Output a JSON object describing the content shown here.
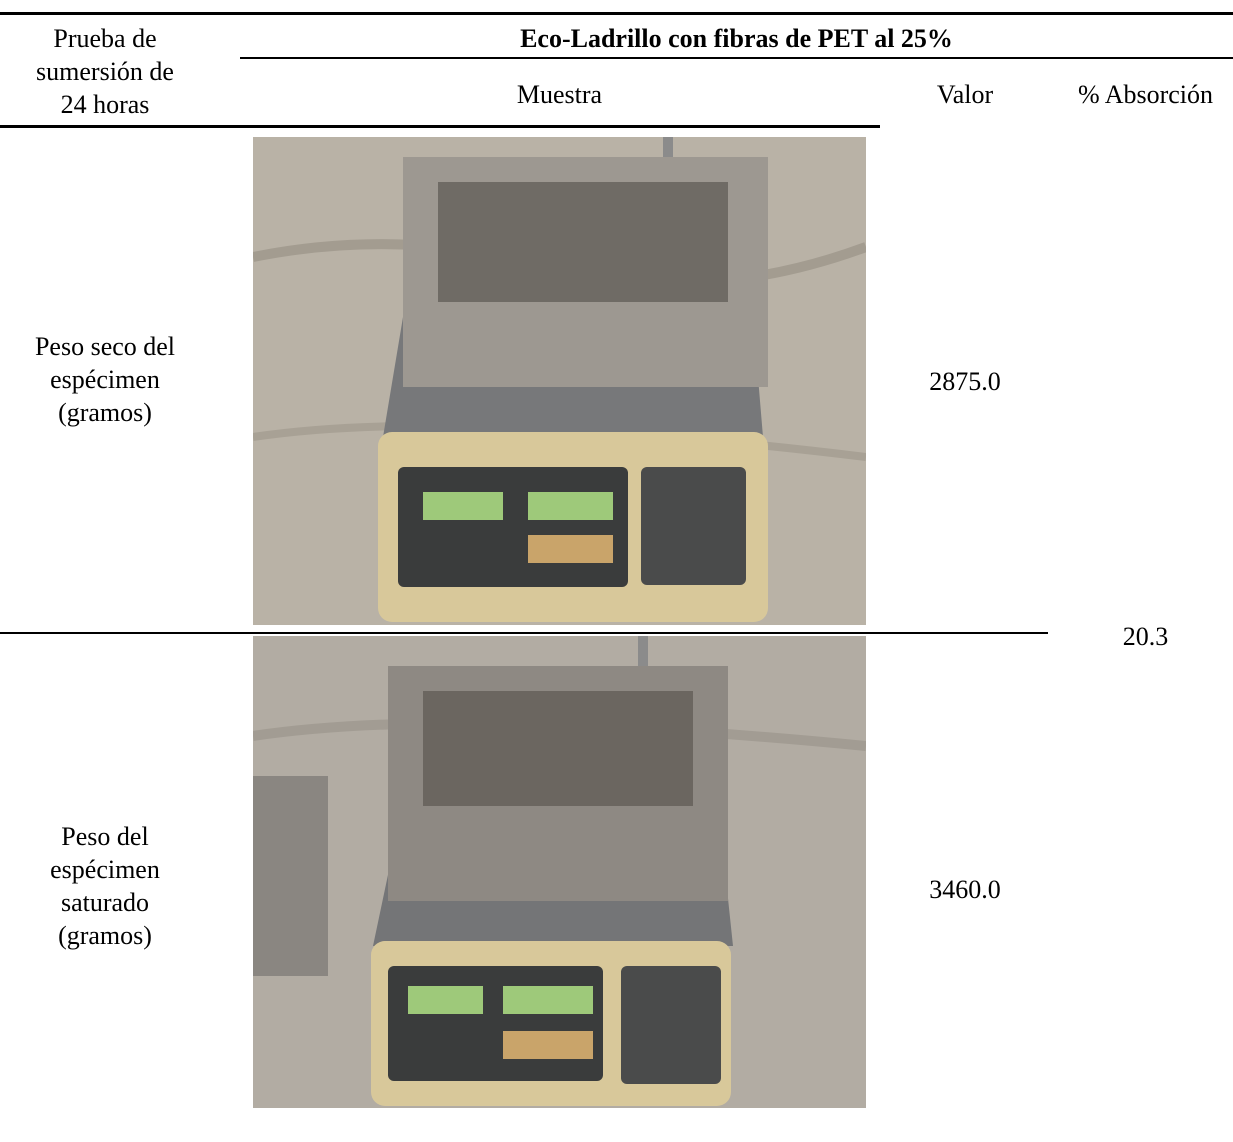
{
  "header": {
    "test_label": [
      "Prueba de",
      "sumersión de",
      "24 horas"
    ],
    "group_title": "Eco-Ladrillo con fibras de PET al 25%",
    "columns": [
      "Muestra",
      "Valor",
      "% Absorción"
    ]
  },
  "rows": [
    {
      "label": [
        "Peso seco del",
        "espécimen",
        "(gramos)"
      ],
      "value": "2875.0"
    },
    {
      "label": [
        "Peso del",
        "espécimen",
        "saturado",
        "(gramos)"
      ],
      "value": "3460.0"
    }
  ],
  "absorption": "20.3"
}
